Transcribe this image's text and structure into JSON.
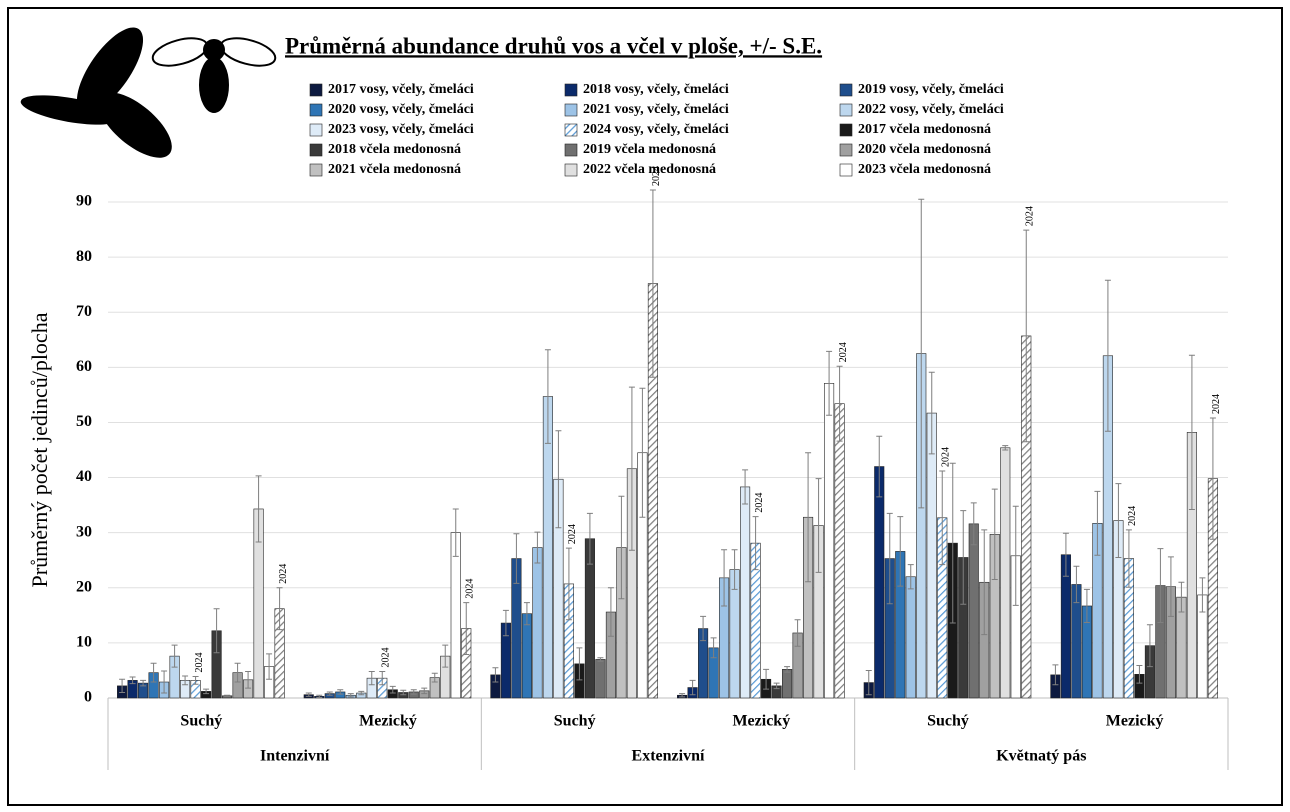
{
  "chart_data": {
    "type": "bar",
    "title": "Průměrná abundance druhů vos a včel v ploše, +/- S.E.",
    "y_label": "Průměrný počet jedinců/plocha",
    "categories": [
      "Suchý",
      "Mezický",
      "Suchý",
      "Mezický",
      "Suchý",
      "Mezický"
    ],
    "category_groups": [
      "Intenzivní",
      "Extenzivní",
      "Květnatý pás"
    ],
    "ylim": [
      0,
      90
    ],
    "yticks": [
      0,
      10,
      20,
      30,
      40,
      50,
      60,
      70,
      80,
      90
    ],
    "grid": true,
    "series": [
      {
        "name": "2017 vosy, včely, čmeláci",
        "color": "#0d1a40",
        "values": [
          2.2,
          0.6,
          4.2,
          0.5,
          2.8,
          4.2
        ],
        "errors": [
          1.2,
          0.3,
          1.3,
          0.3,
          2.2,
          1.8
        ]
      },
      {
        "name": "2018 vosy, včely, čmeláci",
        "color": "#0b2a6a",
        "values": [
          3.2,
          0.3,
          13.6,
          1.9,
          42.0,
          26.0
        ],
        "errors": [
          0.6,
          0.2,
          2.3,
          1.3,
          5.5,
          3.9
        ]
      },
      {
        "name": "2019 vosy, včely, čmeláci",
        "color": "#1f4e8c",
        "values": [
          2.7,
          0.8,
          25.3,
          12.6,
          25.3,
          20.6
        ],
        "errors": [
          0.5,
          0.3,
          4.5,
          2.2,
          8.2,
          3.3
        ]
      },
      {
        "name": "2020 vosy, včely, čmeláci",
        "color": "#2f75b5",
        "values": [
          4.6,
          1.1,
          15.3,
          9.1,
          26.6,
          16.7
        ],
        "errors": [
          1.7,
          0.4,
          2.0,
          1.8,
          6.3,
          3.0
        ]
      },
      {
        "name": "2021 vosy, včely, čmeláci",
        "color": "#9dc3e6",
        "values": [
          2.9,
          0.5,
          27.3,
          21.8,
          22.0,
          31.7
        ],
        "errors": [
          2.0,
          0.3,
          2.8,
          5.1,
          2.2,
          5.8
        ]
      },
      {
        "name": "2022 vosy, včely, čmeláci",
        "color": "#bdd7ee",
        "values": [
          7.6,
          0.9,
          54.7,
          23.3,
          62.5,
          62.1
        ],
        "errors": [
          2.0,
          0.3,
          8.5,
          3.6,
          28.0,
          13.7
        ]
      },
      {
        "name": "2023 vosy, včely, čmeláci",
        "color": "#deebf7",
        "values": [
          3.2,
          3.6,
          39.7,
          38.3,
          51.7,
          32.2
        ],
        "errors": [
          0.8,
          1.2,
          8.8,
          3.1,
          7.4,
          6.7
        ]
      },
      {
        "name": "2024 vosy, včely, čmeláci",
        "color": "#5b9bd5",
        "hatch": true,
        "label": "2024",
        "values": [
          3.2,
          3.6,
          20.7,
          28.1,
          32.7,
          25.3
        ],
        "errors": [
          0.7,
          1.2,
          6.5,
          4.8,
          8.5,
          5.2
        ]
      },
      {
        "name": "2017 včela medonosná",
        "color": "#1a1a1a",
        "values": [
          1.2,
          1.5,
          6.2,
          3.4,
          28.1,
          4.3
        ],
        "errors": [
          0.4,
          0.6,
          2.9,
          1.8,
          14.5,
          1.6
        ]
      },
      {
        "name": "2018 včela medonosná",
        "color": "#3a3a3a",
        "values": [
          12.2,
          1.0,
          28.9,
          2.2,
          25.5,
          9.5
        ],
        "errors": [
          4.0,
          0.4,
          4.6,
          0.5,
          8.5,
          3.8
        ]
      },
      {
        "name": "2019 včela medonosná",
        "color": "#707070",
        "values": [
          0.4,
          1.1,
          7.0,
          5.2,
          31.6,
          20.4
        ],
        "errors": [
          0.1,
          0.4,
          0.3,
          0.5,
          3.8,
          6.7
        ]
      },
      {
        "name": "2020 včela medonosná",
        "color": "#a0a0a0",
        "values": [
          4.6,
          1.3,
          15.6,
          11.8,
          21.0,
          20.2
        ],
        "errors": [
          1.7,
          0.5,
          4.4,
          2.4,
          9.5,
          5.4
        ]
      },
      {
        "name": "2021 včela medonosná",
        "color": "#c0c0c0",
        "values": [
          3.3,
          3.7,
          27.3,
          32.8,
          29.7,
          18.3
        ],
        "errors": [
          1.5,
          0.8,
          9.3,
          11.7,
          8.2,
          2.7
        ]
      },
      {
        "name": "2022 včela medonosná",
        "color": "#e0e0e0",
        "values": [
          34.3,
          7.6,
          41.6,
          31.3,
          45.4,
          48.2
        ],
        "errors": [
          6.0,
          2.0,
          14.8,
          8.5,
          0.4,
          14.0
        ]
      },
      {
        "name": "2023 včela medonosná",
        "color": "#ffffff",
        "values": [
          5.7,
          30.0,
          44.5,
          57.1,
          25.8,
          18.7
        ],
        "errors": [
          2.3,
          4.3,
          11.7,
          5.8,
          9.0,
          3.1
        ]
      },
      {
        "color": "#7f7f7f",
        "hatch": true,
        "label": "2024",
        "values": [
          16.2,
          12.6,
          75.2,
          53.4,
          65.7,
          39.8
        ],
        "errors": [
          3.8,
          4.7,
          17.0,
          6.8,
          19.2,
          11.0
        ]
      }
    ]
  }
}
